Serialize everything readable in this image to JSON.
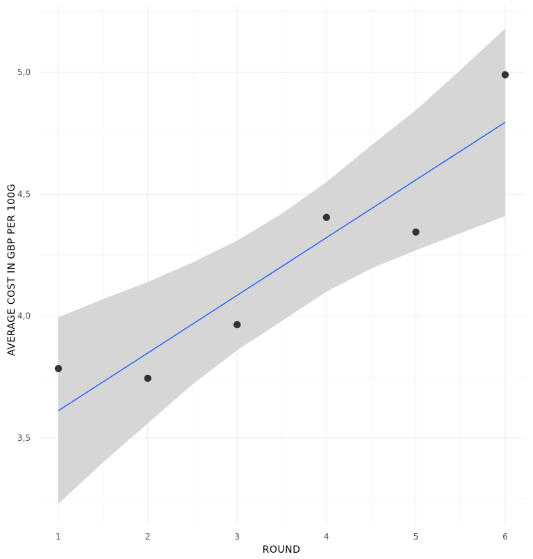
{
  "chart_data": {
    "type": "scatter",
    "title": "",
    "xlabel": "ROUND",
    "ylabel": "AVERAGE COST IN GBP PER 100G",
    "xlim": [
      0.9,
      6.2
    ],
    "ylim": [
      3.2,
      5.22
    ],
    "x_ticks": [
      1,
      2,
      3,
      4,
      5,
      6
    ],
    "x_tick_labels": [
      "1",
      "2",
      "3",
      "4",
      "5",
      "6"
    ],
    "y_ticks": [
      3.5,
      4.0,
      4.5,
      5.0
    ],
    "y_tick_labels": [
      "3,5",
      "4,0",
      "4,5",
      "5,0"
    ],
    "grid": true,
    "series": [
      {
        "name": "observed",
        "kind": "points",
        "x": [
          1,
          2,
          3,
          4,
          5,
          6
        ],
        "y": [
          3.785,
          3.745,
          3.965,
          4.405,
          4.345,
          4.99
        ],
        "color": "#333333"
      }
    ],
    "fit": {
      "name": "linear fit",
      "x": [
        1,
        6
      ],
      "y": [
        3.612,
        4.795
      ],
      "color": "#3366FF"
    },
    "confidence_band": {
      "color": "#d6d6d6",
      "x": [
        1,
        1.5,
        2,
        2.5,
        3,
        3.5,
        4,
        4.5,
        5,
        5.5,
        6
      ],
      "upper": [
        3.995,
        4.07,
        4.14,
        4.22,
        4.31,
        4.42,
        4.55,
        4.7,
        4.845,
        5.01,
        5.18
      ],
      "lower": [
        3.23,
        3.4,
        3.56,
        3.72,
        3.86,
        3.98,
        4.1,
        4.195,
        4.27,
        4.34,
        4.41
      ]
    }
  }
}
